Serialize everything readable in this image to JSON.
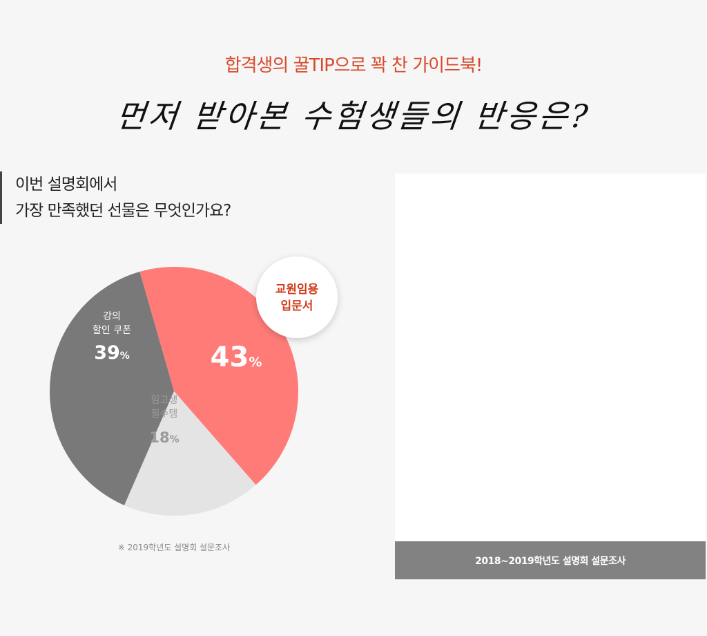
{
  "header": {
    "subtitle": "합격생의 꿀TIP으로 꽉 찬 가이드북!",
    "title": "먼저 받아본 수험생들의 반응은?"
  },
  "question": {
    "line1": "이번 설명회에서",
    "line2": "가장 만족했던 선물은 무엇인가요?"
  },
  "chart_data": {
    "type": "pie",
    "slices": [
      {
        "label": "교원임용 입문서",
        "value": 43,
        "color": "#ff7b78"
      },
      {
        "label": "임고생 필수템",
        "value": 18,
        "color": "#e4e4e4"
      },
      {
        "label": "강의 할인 쿠폰",
        "value": 39,
        "color": "#797979"
      }
    ],
    "unit": "%",
    "callout": {
      "line1": "교원임용",
      "line2": "입문서",
      "color": "#cf3d1d"
    },
    "labels": [
      {
        "line1": "",
        "line2": "",
        "value": "43",
        "color": "#ffffff"
      },
      {
        "line1": "임고생",
        "line2": "필수템",
        "value": "18",
        "color": "#9a9a9a"
      },
      {
        "line1": "강의",
        "line2": "할인 쿠폰",
        "value": "39",
        "color": "#ffffff"
      }
    ]
  },
  "note": "※ 2019학년도 설명회 설문조사",
  "right_panel": {
    "caption": "2018~2019학년도 설명회 설문조사"
  }
}
